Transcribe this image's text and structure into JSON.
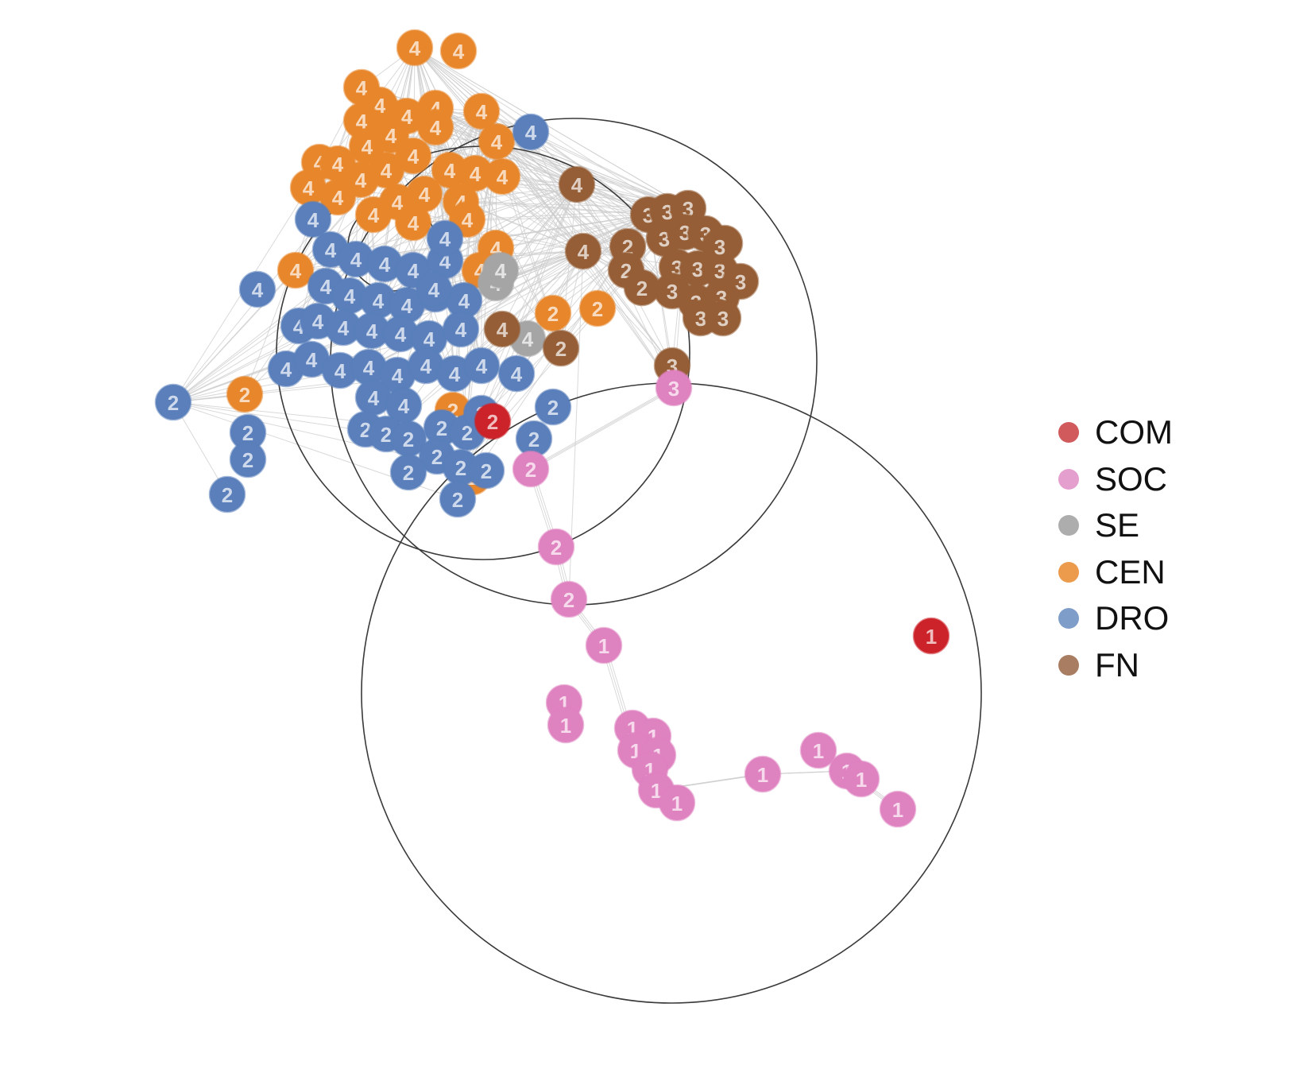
{
  "legend": {
    "items": [
      {
        "label": "COM",
        "color": "#d15a5d"
      },
      {
        "label": "SOC",
        "color": "#e59fcf"
      },
      {
        "label": "SE",
        "color": "#adadad"
      },
      {
        "label": "CEN",
        "color": "#ec9b4d"
      },
      {
        "label": "DRO",
        "color": "#7f9dc9"
      },
      {
        "label": "FN",
        "color": "#a97d62"
      }
    ]
  },
  "palette": {
    "COM": "#cc2229",
    "SOC": "#df82c0",
    "SE": "#a5a5a5",
    "CEN": "#e8862b",
    "DRO": "#5a7fbb",
    "FN": "#955e36",
    "edge": "#cccccc",
    "hull": "#3a3a3a"
  },
  "node_icon": "numbered-circle",
  "hull_icon": "community-circle"
}
